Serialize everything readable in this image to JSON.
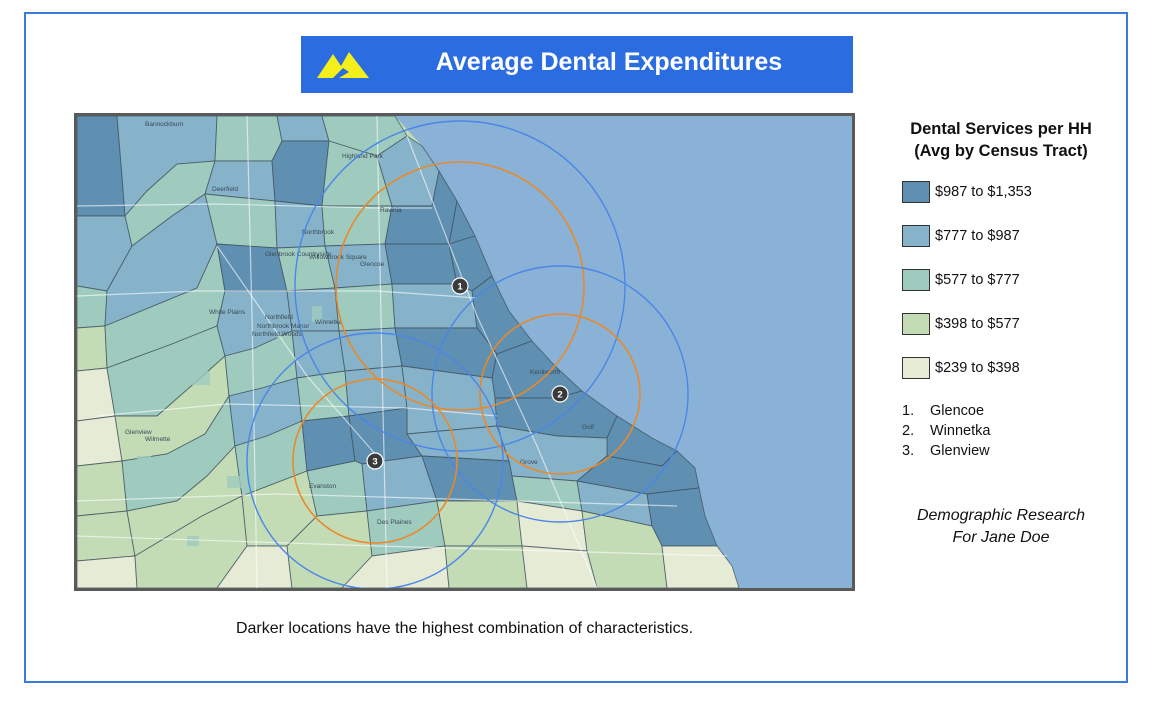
{
  "header": {
    "title": "Average Dental Expenditures",
    "logo_icon": "mountain-logo-icon",
    "banner_color": "#2b6de0",
    "logo_color": "#f4ee1a"
  },
  "legend": {
    "title_line1": "Dental Services per HH",
    "title_line2": "(Avg by Census Tract)",
    "items": [
      {
        "label": "$987 to $1,353",
        "color": "#5f8fb1"
      },
      {
        "label": "$777 to $987",
        "color": "#86b3ca"
      },
      {
        "label": "$577 to $777",
        "color": "#9fcbbf"
      },
      {
        "label": "$398 to $577",
        "color": "#c3dcb6"
      },
      {
        "label": "$239 to $398",
        "color": "#e6ebd6"
      }
    ]
  },
  "locations": [
    {
      "num": "1",
      "list_num": "1.",
      "name": "Glencoe"
    },
    {
      "num": "2",
      "list_num": "2.",
      "name": "Winnetka"
    },
    {
      "num": "3",
      "list_num": "3.",
      "name": "Glenview"
    }
  ],
  "map": {
    "water_color": "#8ab2d6",
    "ring_outer_color": "#4a86e8",
    "ring_inner_color": "#e8892b",
    "places": [
      {
        "name": "Bannockburn"
      },
      {
        "name": "Highland Park"
      },
      {
        "name": "Deerfield"
      },
      {
        "name": "Ravinia"
      },
      {
        "name": "Northbrook"
      },
      {
        "name": "Glenbrook Countryside"
      },
      {
        "name": "Willowbrook Square"
      },
      {
        "name": "Glencoe"
      },
      {
        "name": "White Plains"
      },
      {
        "name": "Northfield"
      },
      {
        "name": "Northbrook Manor"
      },
      {
        "name": "Winnetka"
      },
      {
        "name": "Northfield Woods"
      },
      {
        "name": "Kenilworth"
      },
      {
        "name": "Glenview"
      },
      {
        "name": "Wilmette"
      },
      {
        "name": "Golf"
      },
      {
        "name": "Evanston"
      },
      {
        "name": "Grove"
      },
      {
        "name": "Des Plaines"
      }
    ]
  },
  "credit": {
    "line1": "Demographic Research",
    "line2": "For Jane Doe"
  },
  "caption": "Darker locations have the highest combination of characteristics."
}
